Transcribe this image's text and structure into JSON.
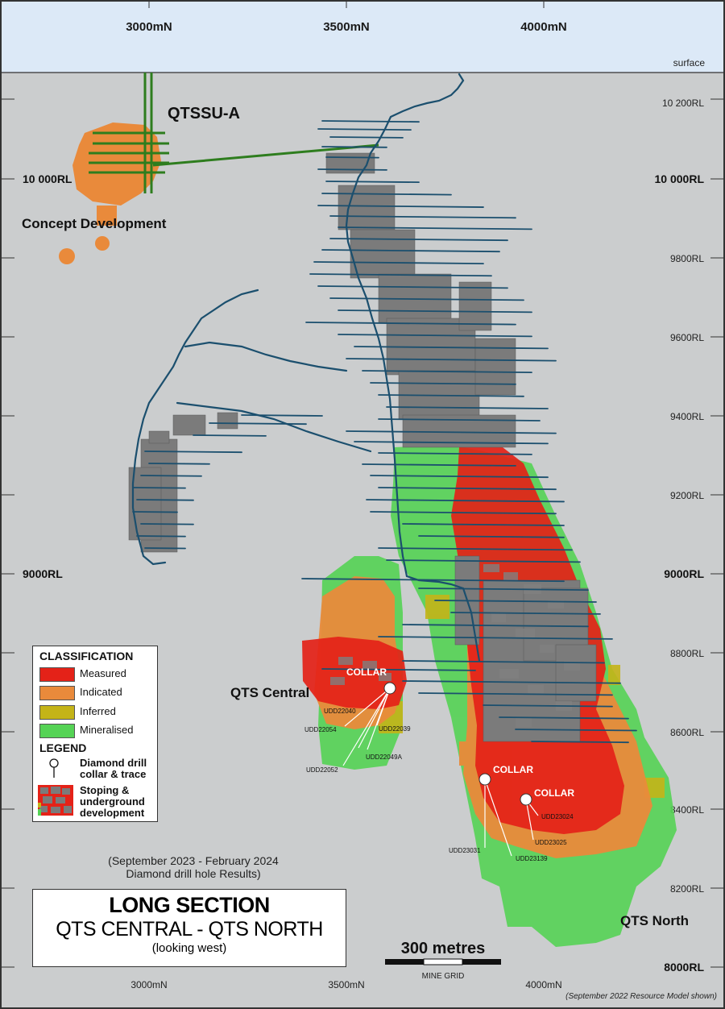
{
  "axes": {
    "top_ticks": [
      "3000mN",
      "3500mN",
      "4000mN"
    ],
    "bottom_ticks": [
      "3000mN",
      "3500mN",
      "4000mN"
    ],
    "surface_label": "surface",
    "rl_left": [
      "10 000RL",
      "9000RL"
    ],
    "rl_right": [
      "10 200RL",
      "10 000RL",
      "9800RL",
      "9600RL",
      "9400RL",
      "9200RL",
      "9000RL",
      "8800RL",
      "8600RL",
      "8400RL",
      "8200RL",
      "8000RL"
    ]
  },
  "labels": {
    "qtssu": "QTSSU-A",
    "concept": "Concept Development",
    "qts_central": "QTS Central",
    "qts_north": "QTS North",
    "collar": "COLLAR"
  },
  "drillholes": {
    "central": [
      "UDD22040",
      "UDD22054",
      "UDD22039",
      "UDD22049A",
      "UDD22052"
    ],
    "north_a": [
      "UDD23031",
      "UDD23139"
    ],
    "north_b": [
      "UDD23024",
      "UDD23025"
    ]
  },
  "legend": {
    "classification_title": "CLASSIFICATION",
    "items": [
      {
        "label": "Measured",
        "color": "#e42218"
      },
      {
        "label": "Indicated",
        "color": "#e98a3b"
      },
      {
        "label": "Inferred",
        "color": "#c4b418"
      },
      {
        "label": "Mineralised",
        "color": "#55d355"
      }
    ],
    "legend_title": "LEGEND",
    "drill_label_1": "Diamond drill",
    "drill_label_2": "collar & trace",
    "stope_label_1": "Stoping &",
    "stope_label_2": "underground",
    "stope_label_3": "development"
  },
  "period_1": "(September 2023 - February 2024",
  "period_2": "Diamond drill hole Results)",
  "title": {
    "line1": "LONG SECTION",
    "line2": "QTS CENTRAL - QTS NORTH",
    "line3": "(looking west)"
  },
  "scale": {
    "label": "300 metres",
    "grid": "MINE GRID"
  },
  "footnote": "(September 2022 Resource Model shown)",
  "colors": {
    "measured": "#e42218",
    "indicated": "#e98a3b",
    "inferred": "#c4b418",
    "mineralised": "#55d355",
    "development": "#1b4f6e",
    "stope": "#7b7b7b",
    "qtssu_drive": "#2e7d1e",
    "sky": "#dce9f7"
  }
}
